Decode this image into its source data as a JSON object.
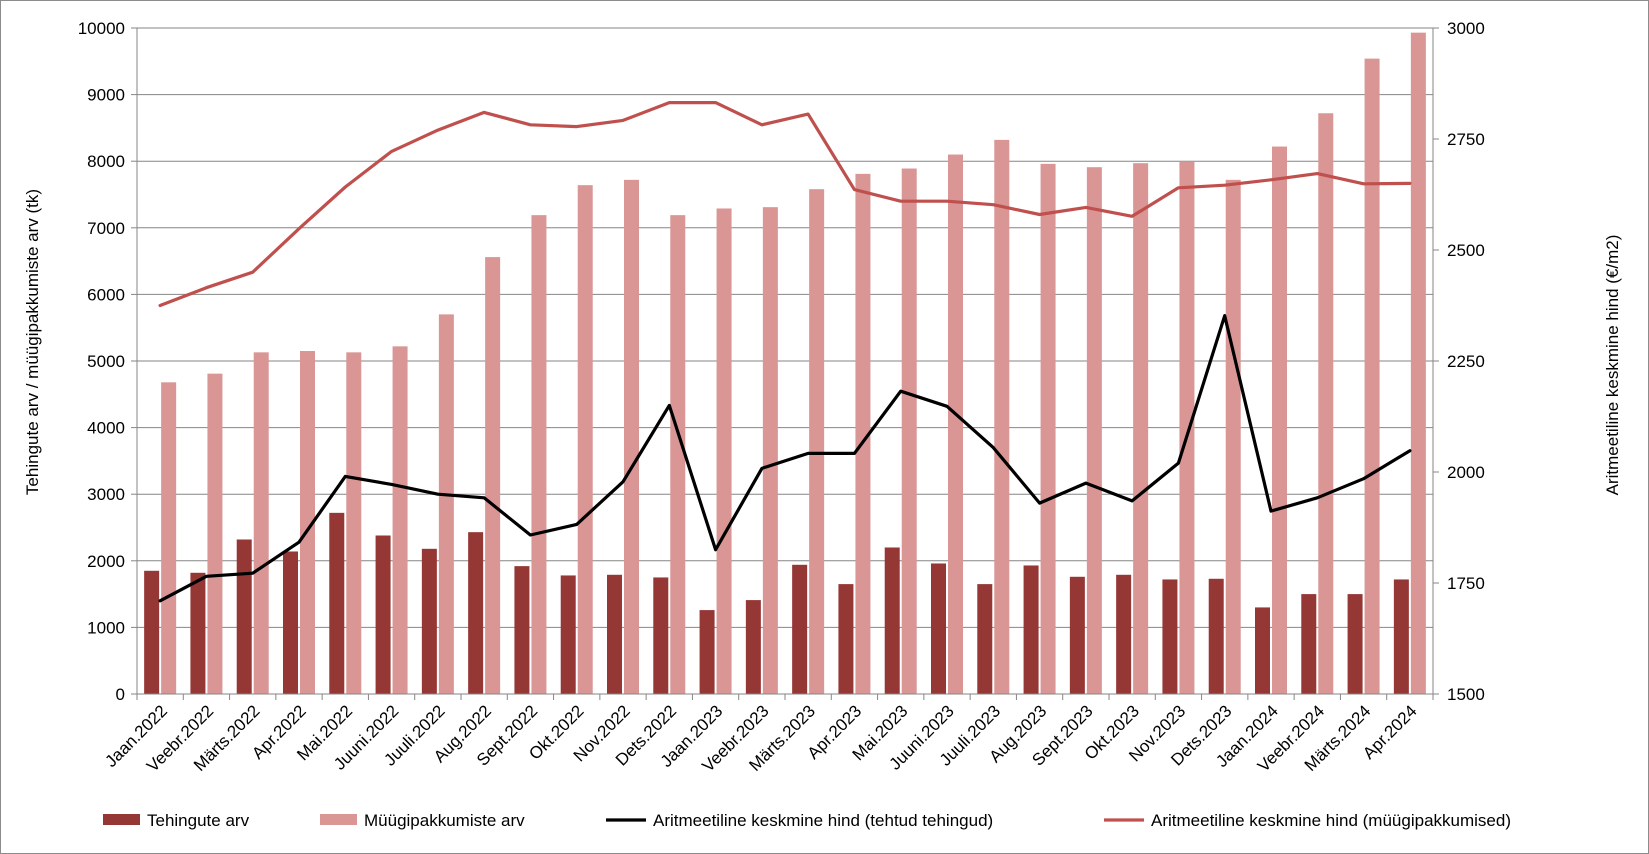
{
  "chart_data": {
    "type": "bar",
    "categories": [
      "Jaan.2022",
      "Veebr.2022",
      "Märts.2022",
      "Apr.2022",
      "Mai.2022",
      "Juuni.2022",
      "Juuli.2022",
      "Aug.2022",
      "Sept.2022",
      "Okt.2022",
      "Nov.2022",
      "Dets.2022",
      "Jaan.2023",
      "Veebr.2023",
      "Märts.2023",
      "Apr.2023",
      "Mai.2023",
      "Juuni.2023",
      "Juuli.2023",
      "Aug.2023",
      "Sept.2023",
      "Okt.2023",
      "Nov.2023",
      "Dets.2023",
      "Jaan.2024",
      "Veebr.2024",
      "Märts.2024",
      "Apr.2024"
    ],
    "y_left_label": "Tehingute arv / müügipakkumiste arv (tk)",
    "y_right_label": "Aritmeetiline keskmine hind (€/m2)",
    "y_left_range": [
      0,
      10000
    ],
    "y_left_ticks": [
      0,
      1000,
      2000,
      3000,
      4000,
      5000,
      6000,
      7000,
      8000,
      9000,
      10000
    ],
    "y_right_range": [
      1500,
      3000
    ],
    "y_right_ticks": [
      1500,
      1750,
      2000,
      2250,
      2500,
      2750,
      3000
    ],
    "grid": "horizontal",
    "legend_position": "bottom",
    "series": [
      {
        "name": "Tehingute arv",
        "type": "bar",
        "axis": "left",
        "color": "#953735",
        "values": [
          1850,
          1820,
          2320,
          2140,
          2720,
          2380,
          2180,
          2430,
          1920,
          1780,
          1790,
          1750,
          1260,
          1410,
          1940,
          1650,
          2200,
          1960,
          1650,
          1930,
          1760,
          1790,
          1720,
          1730,
          1300,
          1500,
          1500,
          1720
        ]
      },
      {
        "name": "Müügipakkumiste arv",
        "type": "bar",
        "axis": "left",
        "color": "#d99694",
        "values": [
          4680,
          4810,
          5130,
          5150,
          5130,
          5220,
          5700,
          6560,
          7190,
          7640,
          7720,
          7190,
          7290,
          7310,
          7580,
          7810,
          7890,
          8100,
          8320,
          7960,
          7910,
          7970,
          7990,
          7720,
          8220,
          8720,
          9540,
          9930
        ]
      },
      {
        "name": "Aritmeetiline keskmine hind (tehtud tehingud)",
        "type": "line",
        "axis": "right",
        "color": "#000000",
        "values": [
          1710,
          1765,
          1772,
          1842,
          1990,
          1972,
          1950,
          1942,
          1858,
          1882,
          1978,
          2150,
          1825,
          2008,
          2042,
          2042,
          2182,
          2148,
          2055,
          1930,
          1975,
          1935,
          2020,
          2352,
          1912,
          1942,
          1985,
          2048
        ]
      },
      {
        "name": "Aritmeetiline keskmine hind (müügipakkumised)",
        "type": "line",
        "axis": "right",
        "color": "#c0504d",
        "values": [
          2375,
          2415,
          2450,
          2548,
          2642,
          2722,
          2770,
          2810,
          2782,
          2778,
          2792,
          2832,
          2832,
          2782,
          2806,
          2636,
          2610,
          2610,
          2602,
          2580,
          2596,
          2576,
          2640,
          2646,
          2658,
          2672,
          2649,
          2650
        ]
      }
    ]
  }
}
